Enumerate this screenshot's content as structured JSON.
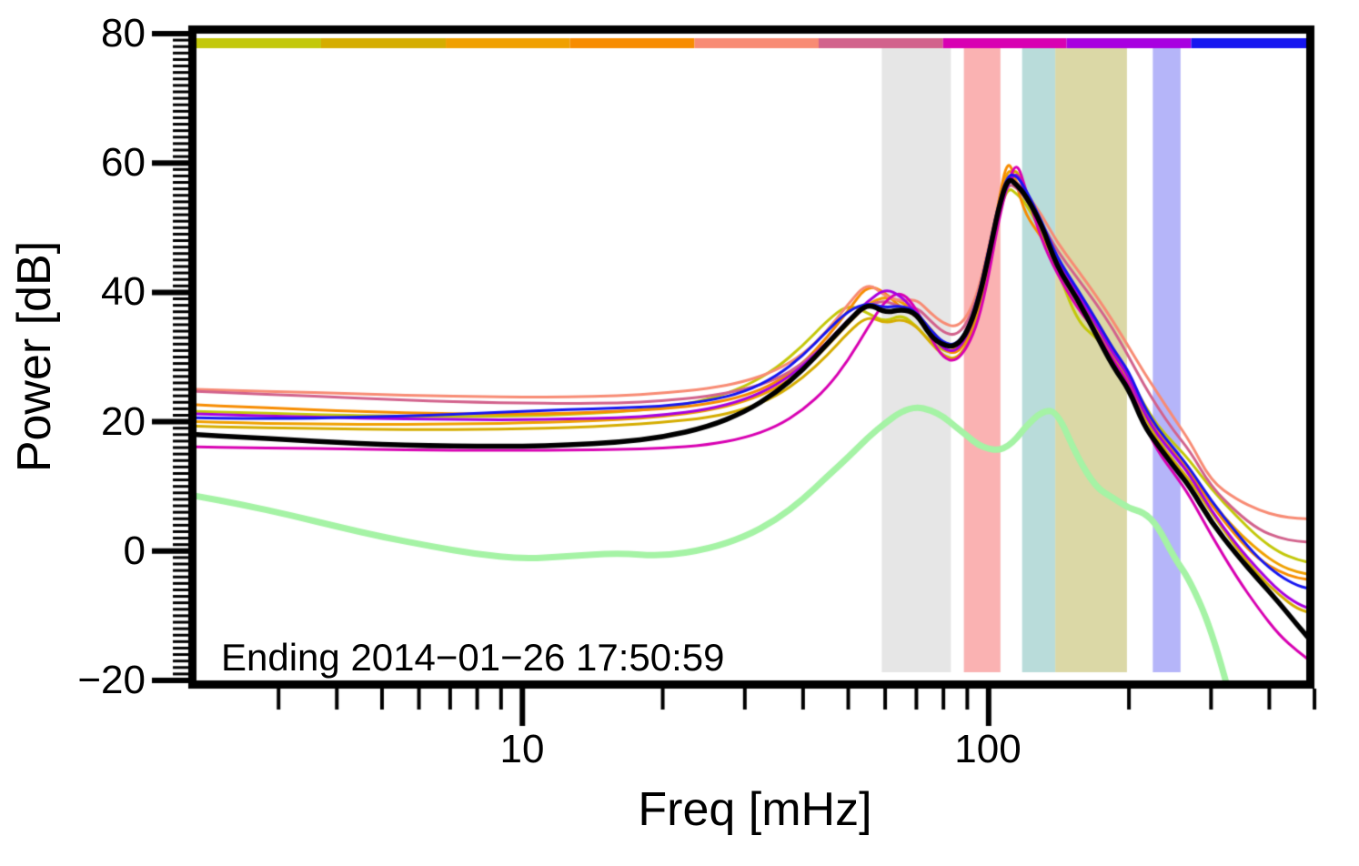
{
  "chart_data": {
    "type": "line",
    "title": "",
    "xlabel": "Freq [mHz]",
    "ylabel": "Power [dB]",
    "annotation": "Ending 2014−01−26 17:50:59",
    "x_scale": "log",
    "y_scale": "linear",
    "xlim": [
      2,
      480
    ],
    "ylim": [
      -20,
      80
    ],
    "grid": false,
    "legend": "none",
    "x_major_ticks": [
      {
        "value": 10,
        "label": "10"
      },
      {
        "value": 100,
        "label": "100"
      }
    ],
    "x_minor_ticks": [
      3,
      4,
      5,
      6,
      7,
      8,
      9,
      20,
      30,
      40,
      50,
      60,
      70,
      80,
      90,
      200,
      300,
      400,
      500
    ],
    "y_major_ticks": [
      {
        "value": 80,
        "label": "80"
      },
      {
        "value": 60,
        "label": "60"
      },
      {
        "value": 40,
        "label": "40"
      },
      {
        "value": 20,
        "label": "20"
      },
      {
        "value": 0,
        "label": "0"
      },
      {
        "value": -20,
        "label": "−20"
      }
    ],
    "y_minor_tick_step": 1,
    "top_colorbar": {
      "segments": [
        {
          "from_mHz": 2.0,
          "to_mHz": 3.7,
          "color": "#c3c80a"
        },
        {
          "from_mHz": 3.7,
          "to_mHz": 6.85,
          "color": "#d5ad00"
        },
        {
          "from_mHz": 6.85,
          "to_mHz": 12.65,
          "color": "#f0a000"
        },
        {
          "from_mHz": 12.65,
          "to_mHz": 23.4,
          "color": "#f78c00"
        },
        {
          "from_mHz": 23.4,
          "to_mHz": 43.2,
          "color": "#f88b74"
        },
        {
          "from_mHz": 43.2,
          "to_mHz": 79.8,
          "color": "#d2628c"
        },
        {
          "from_mHz": 79.8,
          "to_mHz": 147.0,
          "color": "#d800b2"
        },
        {
          "from_mHz": 147.0,
          "to_mHz": 272.0,
          "color": "#a800e0"
        },
        {
          "from_mHz": 272.0,
          "to_mHz": 500.0,
          "color": "#1616f0"
        }
      ]
    },
    "shaded_bands": [
      {
        "from_mHz": 59.0,
        "to_mHz": 83.0,
        "color": "#e6e6e6"
      },
      {
        "from_mHz": 88.5,
        "to_mHz": 106.0,
        "color": "#fab2b2"
      },
      {
        "from_mHz": 118.0,
        "to_mHz": 139.0,
        "color": "#b9dcda"
      },
      {
        "from_mHz": 139.0,
        "to_mHz": 198.0,
        "color": "#dbd8a6"
      },
      {
        "from_mHz": 225.0,
        "to_mHz": 258.0,
        "color": "#b5b5f9"
      }
    ],
    "x_mHz": [
      2,
      2.5,
      3.2,
      4,
      5,
      6.3,
      8,
      10,
      12.5,
      16,
      20,
      25,
      30,
      35,
      40,
      45,
      50,
      55,
      60,
      65,
      70,
      75,
      80,
      85,
      90,
      95,
      100,
      105,
      110,
      115,
      120,
      130,
      140,
      155,
      170,
      185,
      200,
      215,
      230,
      250,
      270,
      300,
      340,
      380,
      420,
      460,
      500
    ],
    "series": [
      {
        "name": "spectrum-olive",
        "color": "#c3c80a",
        "width": 3,
        "values": [
          21.6,
          21.4,
          21.2,
          21.0,
          20.9,
          20.8,
          20.8,
          20.9,
          21.1,
          21.5,
          22.1,
          23.4,
          25.4,
          28.2,
          31.8,
          35.6,
          38.2,
          36.8,
          35.4,
          36.6,
          34.8,
          32.4,
          31.0,
          30.6,
          33.0,
          38.0,
          45.0,
          52.0,
          56.3,
          55.2,
          53.8,
          49.4,
          43.8,
          35.5,
          33.0,
          30.2,
          27.0,
          22.8,
          19.4,
          16.6,
          14.0,
          9.6,
          5.4,
          2.0,
          -0.2,
          -1.4,
          -1.9
        ]
      },
      {
        "name": "spectrum-gold",
        "color": "#d5ad00",
        "width": 3,
        "values": [
          19.3,
          19.1,
          19.0,
          18.9,
          18.8,
          18.8,
          18.8,
          18.9,
          19.1,
          19.4,
          19.9,
          20.6,
          21.9,
          23.9,
          26.8,
          30.2,
          33.8,
          36.4,
          35.2,
          35.9,
          34.8,
          32.2,
          30.2,
          29.6,
          31.8,
          36.6,
          44.2,
          52.2,
          57.6,
          59.3,
          55.0,
          49.8,
          44.3,
          39.5,
          34.8,
          30.0,
          26.3,
          21.0,
          17.3,
          13.8,
          11.0,
          6.0,
          0.5,
          -3.8,
          -6.8,
          -9.0,
          -9.7
        ]
      },
      {
        "name": "spectrum-amber",
        "color": "#f0a000",
        "width": 3,
        "values": [
          20.0,
          19.8,
          19.7,
          19.6,
          19.6,
          19.6,
          19.7,
          19.8,
          20.0,
          20.3,
          20.8,
          21.7,
          23.1,
          25.1,
          28.0,
          31.6,
          35.2,
          38.2,
          39.4,
          38.6,
          36.8,
          34.4,
          32.0,
          31.1,
          33.2,
          38.2,
          45.6,
          53.2,
          59.6,
          57.0,
          54.5,
          50.6,
          45.2,
          40.3,
          35.8,
          31.2,
          27.5,
          22.2,
          18.6,
          15.3,
          12.6,
          7.6,
          3.2,
          0.0,
          -2.2,
          -3.3,
          -3.7
        ]
      },
      {
        "name": "spectrum-orange",
        "color": "#f78c00",
        "width": 3,
        "values": [
          22.6,
          22.3,
          22.0,
          21.7,
          21.5,
          21.3,
          21.2,
          21.2,
          21.3,
          21.6,
          22.0,
          22.7,
          24.0,
          26.0,
          29.0,
          33.0,
          37.2,
          41.2,
          40.0,
          37.5,
          36.4,
          33.8,
          31.2,
          30.4,
          32.6,
          37.8,
          45.2,
          54.0,
          61.0,
          56.5,
          52.0,
          48.5,
          44.8,
          40.0,
          35.5,
          30.8,
          27.2,
          21.8,
          18.2,
          15.0,
          12.2,
          7.2,
          2.2,
          -1.3,
          -3.2,
          -4.2,
          -4.5
        ]
      },
      {
        "name": "spectrum-salmon",
        "color": "#f88b74",
        "width": 3,
        "values": [
          25.0,
          24.8,
          24.6,
          24.4,
          24.2,
          24.0,
          23.9,
          23.8,
          23.8,
          24.0,
          24.4,
          25.1,
          26.2,
          27.9,
          30.4,
          34.0,
          38.2,
          41.6,
          39.4,
          38.6,
          39.0,
          36.8,
          35.2,
          34.6,
          36.2,
          40.2,
          47.0,
          53.6,
          58.0,
          57.0,
          55.5,
          52.0,
          47.8,
          43.5,
          39.5,
          35.5,
          31.5,
          27.7,
          24.5,
          20.5,
          17.0,
          10.8,
          8.0,
          6.3,
          5.4,
          5.0,
          5.0
        ]
      },
      {
        "name": "spectrum-crimson",
        "color": "#d2628c",
        "width": 3,
        "values": [
          24.7,
          24.4,
          24.1,
          23.8,
          23.5,
          23.2,
          23.0,
          22.9,
          22.8,
          22.9,
          23.2,
          23.9,
          25.0,
          26.5,
          29.0,
          32.2,
          35.4,
          38.0,
          38.8,
          37.6,
          37.8,
          35.6,
          33.8,
          33.3,
          35.2,
          39.6,
          46.2,
          52.8,
          56.8,
          56.2,
          54.5,
          50.8,
          46.5,
          42.2,
          38.3,
          34.3,
          30.0,
          25.8,
          22.3,
          18.5,
          15.5,
          10.0,
          6.0,
          3.3,
          2.0,
          1.5,
          1.3
        ]
      },
      {
        "name": "spectrum-magenta",
        "color": "#d800b2",
        "width": 3,
        "values": [
          16.1,
          16.0,
          15.9,
          15.8,
          15.7,
          15.6,
          15.6,
          15.6,
          15.6,
          15.7,
          15.9,
          16.4,
          17.5,
          19.2,
          21.8,
          25.2,
          29.5,
          34.5,
          38.8,
          40.2,
          37.5,
          33.0,
          29.8,
          29.3,
          31.5,
          35.5,
          42.5,
          51.0,
          57.0,
          60.3,
          56.0,
          48.0,
          43.0,
          37.5,
          34.0,
          29.5,
          26.0,
          20.0,
          15.5,
          12.0,
          8.5,
          2.5,
          -4.0,
          -9.0,
          -13.0,
          -15.5,
          -17.5
        ]
      },
      {
        "name": "spectrum-purple",
        "color": "#a800e0",
        "width": 3,
        "values": [
          21.2,
          21.0,
          20.8,
          20.6,
          20.5,
          20.4,
          20.3,
          20.3,
          20.4,
          20.6,
          21.0,
          21.9,
          23.4,
          25.6,
          28.6,
          32.2,
          35.8,
          38.6,
          40.6,
          39.4,
          36.8,
          33.6,
          31.2,
          30.8,
          33.2,
          38.2,
          45.2,
          52.6,
          56.8,
          58.8,
          55.2,
          50.0,
          45.0,
          40.0,
          35.0,
          30.5,
          27.0,
          21.5,
          18.0,
          14.8,
          11.8,
          6.3,
          1.0,
          -3.0,
          -6.2,
          -8.2,
          -9.2
        ]
      },
      {
        "name": "spectrum-blue",
        "color": "#1616f0",
        "width": 3,
        "values": [
          20.6,
          20.5,
          20.5,
          20.6,
          20.8,
          21.0,
          21.3,
          21.6,
          21.9,
          22.1,
          22.4,
          23.2,
          24.6,
          27.0,
          30.2,
          34.0,
          37.2,
          38.4,
          37.6,
          38.0,
          37.0,
          34.2,
          32.2,
          31.8,
          34.2,
          39.2,
          46.5,
          53.6,
          58.3,
          58.0,
          56.0,
          51.0,
          45.5,
          40.5,
          35.8,
          31.2,
          27.8,
          22.5,
          19.0,
          15.8,
          12.8,
          7.8,
          2.8,
          -1.2,
          -3.8,
          -5.4,
          -6.0
        ]
      },
      {
        "name": "mean-spectrum-black",
        "color": "#000000",
        "width": 5.5,
        "values": [
          18.0,
          17.6,
          17.2,
          16.8,
          16.5,
          16.3,
          16.2,
          16.2,
          16.4,
          16.8,
          17.6,
          19.2,
          21.5,
          24.5,
          28.0,
          32.0,
          35.5,
          38.4,
          36.8,
          37.4,
          36.8,
          33.2,
          31.8,
          31.6,
          33.8,
          38.5,
          45.5,
          53.0,
          57.8,
          56.6,
          55.0,
          50.5,
          44.0,
          39.0,
          33.5,
          28.5,
          25.0,
          19.5,
          16.5,
          13.0,
          10.0,
          4.5,
          -0.5,
          -4.5,
          -8.0,
          -11.5,
          -14.5
        ]
      },
      {
        "name": "smooth-green-curve",
        "color": "#a5f3a5",
        "width": 7,
        "values": [
          8.5,
          7.2,
          5.5,
          3.8,
          2.2,
          0.8,
          -0.5,
          -1.2,
          -0.8,
          -0.3,
          -0.8,
          0.3,
          2.2,
          4.8,
          8.0,
          11.5,
          14.5,
          17.5,
          19.8,
          21.6,
          22.3,
          21.8,
          20.8,
          19.2,
          17.8,
          16.4,
          15.8,
          15.6,
          16.2,
          17.5,
          19.2,
          21.6,
          21.7,
          14.5,
          9.8,
          8.2,
          6.6,
          6.0,
          4.0,
          -1.0,
          -4.5,
          -12.0,
          -26.0,
          null,
          null,
          null,
          null
        ]
      }
    ]
  }
}
